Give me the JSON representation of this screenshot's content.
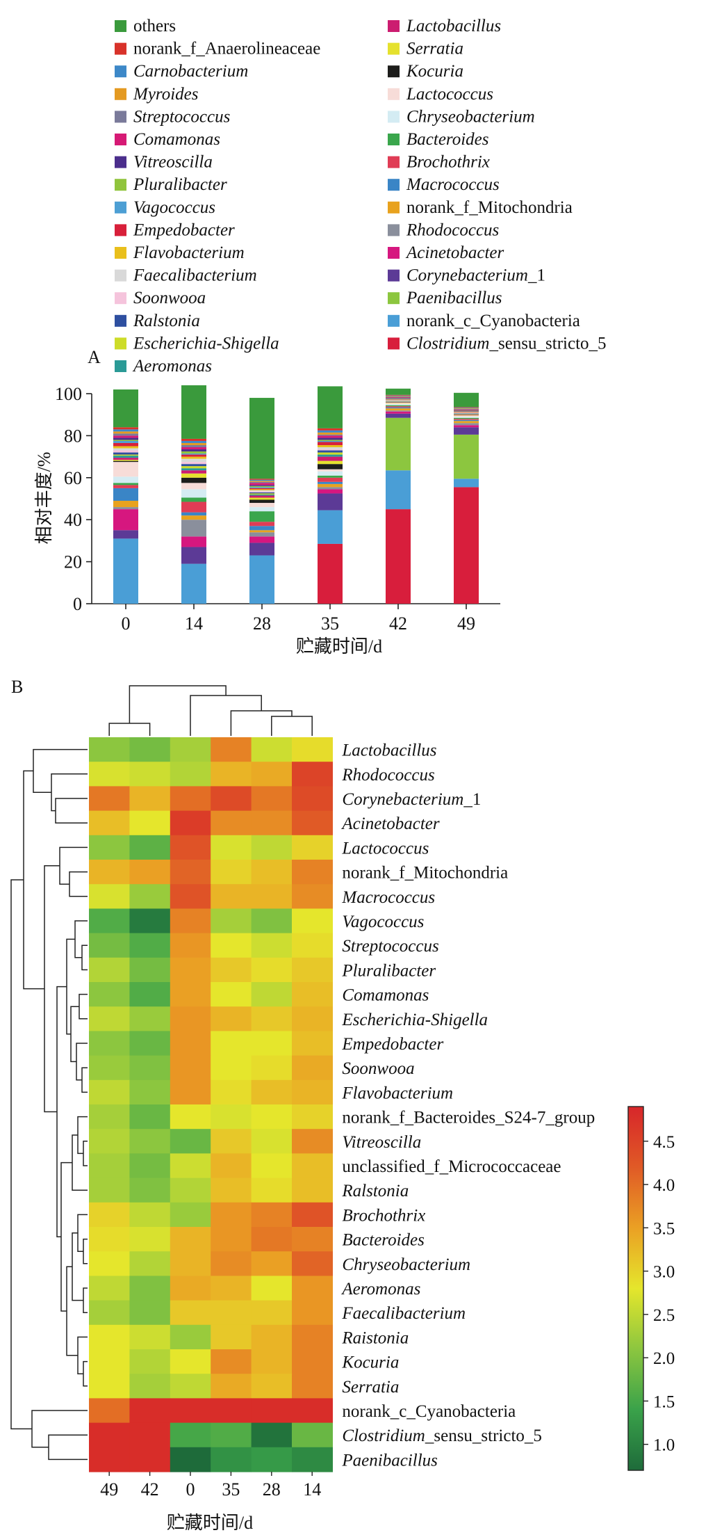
{
  "chart_data": [
    {
      "panel": "A",
      "type": "stacked-bar",
      "xlabel": "贮藏时间/d",
      "ylabel": "相对丰度/%",
      "ylim": [
        0,
        100
      ],
      "yticks": [
        0,
        20,
        40,
        60,
        80,
        100
      ],
      "categories": [
        "0",
        "14",
        "28",
        "35",
        "42",
        "49"
      ],
      "series": [
        {
          "name": "Clostridium_sensu_stricto_5",
          "italic": "Clostridium",
          "rest": "_sensu_stricto_5",
          "color": "#d81e3c",
          "values": [
            0,
            0,
            0,
            28.5,
            45,
            55.5
          ]
        },
        {
          "name": "norank_c_Cyanobacteria",
          "color": "#4a9ed6",
          "values": [
            31,
            19,
            23,
            16,
            18.5,
            4
          ]
        },
        {
          "name": "Paenibacillus",
          "italic": "Paenibacillus",
          "color": "#8cc63f",
          "values": [
            0,
            0,
            0,
            0,
            25,
            21
          ]
        },
        {
          "name": "Corynebacterium_1",
          "italic": "Corynebacterium",
          "rest": "_1",
          "color": "#5c3a96",
          "values": [
            4,
            8,
            6,
            8,
            2,
            3.5
          ]
        },
        {
          "name": "Acinetobacter",
          "italic": "Acinetobacter",
          "color": "#d6177f",
          "values": [
            10,
            5,
            3,
            2,
            1,
            1
          ]
        },
        {
          "name": "Rhodococcus",
          "italic": "Rhodococcus",
          "color": "#8a8f9c",
          "values": [
            1,
            8,
            2,
            1,
            0.5,
            1
          ]
        },
        {
          "name": "norank_f_Mitochondria",
          "color": "#e8a21e",
          "values": [
            3,
            2,
            1,
            1.5,
            1,
            1
          ]
        },
        {
          "name": "Macrococcus",
          "italic": "Macrococcus",
          "color": "#3a85c6",
          "values": [
            6,
            1.5,
            2,
            1,
            0.5,
            0.5
          ]
        },
        {
          "name": "Brochothrix",
          "italic": "Brochothrix",
          "color": "#e03c55",
          "values": [
            1.5,
            5,
            2,
            2,
            0.5,
            0.5
          ]
        },
        {
          "name": "Bacteroides",
          "italic": "Bacteroides",
          "color": "#3aa64c",
          "values": [
            1,
            2,
            5,
            1,
            0.5,
            0.5
          ]
        },
        {
          "name": "Chryseobacterium",
          "italic": "Chryseobacterium",
          "color": "#d4ecf3",
          "values": [
            3,
            4,
            2,
            2,
            0.5,
            0.5
          ]
        },
        {
          "name": "Lactococcus",
          "italic": "Lactococcus",
          "color": "#f7dcd8",
          "values": [
            7,
            3,
            2,
            1,
            0.5,
            0.5
          ]
        },
        {
          "name": "Kocuria",
          "italic": "Kocuria",
          "color": "#1d1d1b",
          "values": [
            0.5,
            2.5,
            1.5,
            2.5,
            0,
            0
          ]
        },
        {
          "name": "Serratia",
          "italic": "Serratia",
          "color": "#e5e12e",
          "values": [
            0.5,
            2,
            1,
            1.5,
            0.2,
            0.2
          ]
        },
        {
          "name": "Lactobacillus",
          "italic": "Lactobacillus",
          "color": "#cc1d70",
          "values": [
            1,
            1.5,
            1,
            2,
            0.2,
            0.3
          ]
        },
        {
          "name": "Aeromonas",
          "italic": "Aeromonas",
          "color": "#2a9a96",
          "values": [
            1,
            1,
            0.5,
            1,
            0.2,
            0.2
          ]
        },
        {
          "name": "Escherichia-Shigella",
          "italic": "Escherichia-Shigella",
          "color": "#cddc29",
          "values": [
            0.5,
            1,
            0.5,
            1,
            0.2,
            0.2
          ]
        },
        {
          "name": "Ralstonia",
          "italic": "Ralstonia",
          "color": "#2e4fa0",
          "values": [
            1,
            1,
            0.5,
            1,
            0.2,
            0.2
          ]
        },
        {
          "name": "Soonwooa",
          "italic": "Soonwooa",
          "color": "#f5c4dc",
          "values": [
            1,
            1,
            0.5,
            0.5,
            0.2,
            0.2
          ]
        },
        {
          "name": "Faecalibacterium",
          "italic": "Faecalibacterium",
          "color": "#d9d9d9",
          "values": [
            1,
            1.5,
            0.5,
            1,
            0.2,
            0.2
          ]
        },
        {
          "name": "Flavobacterium",
          "italic": "Flavobacterium",
          "color": "#e9bf1c",
          "values": [
            1,
            1,
            0.5,
            1,
            0.2,
            0.2
          ]
        },
        {
          "name": "Empedobacter",
          "italic": "Empedobacter",
          "color": "#d8203a",
          "values": [
            1.5,
            1,
            0.5,
            1.5,
            0.2,
            0.3
          ]
        },
        {
          "name": "Vagococcus",
          "italic": "Vagococcus",
          "color": "#4d9fd4",
          "values": [
            1,
            0.5,
            0.5,
            0.5,
            0.2,
            0.2
          ]
        },
        {
          "name": "Pluralibacter",
          "italic": "Pluralibacter",
          "color": "#90c43c",
          "values": [
            0.5,
            1,
            0.5,
            0.5,
            0.2,
            0.2
          ]
        },
        {
          "name": "Vitreoscilla",
          "italic": "Vitreoscilla",
          "color": "#4b2e8c",
          "values": [
            1,
            1,
            0.5,
            1,
            0.2,
            0.2
          ]
        },
        {
          "name": "Comamonas",
          "italic": "Comamonas",
          "color": "#d61a75",
          "values": [
            1,
            1,
            1,
            1,
            0.3,
            0.3
          ]
        },
        {
          "name": "Streptococcus",
          "italic": "Streptococcus",
          "color": "#7a7a9a",
          "values": [
            1,
            1,
            0.5,
            0.5,
            0.3,
            0.3
          ]
        },
        {
          "name": "Myroides",
          "italic": "Myroides",
          "color": "#e49a22",
          "values": [
            1,
            1,
            0.5,
            1,
            0.3,
            0.3
          ]
        },
        {
          "name": "Carnobacterium",
          "italic": "Carnobacterium",
          "color": "#3d88c8",
          "values": [
            1,
            1,
            0.5,
            1,
            0.3,
            0.3
          ]
        },
        {
          "name": "norank_f_Anaerolineaceae",
          "color": "#d8322a",
          "values": [
            1,
            1,
            0.5,
            1,
            0.3,
            0.3
          ]
        },
        {
          "name": "others",
          "color": "#3a9a3c",
          "values": [
            18,
            25.5,
            38.5,
            20,
            3,
            6.8
          ]
        }
      ],
      "legend_columns": [
        [
          "others",
          "norank_f_Anaerolineaceae",
          "Carnobacterium",
          "Myroides",
          "Streptococcus",
          "Comamonas",
          "Vitreoscilla",
          "Pluralibacter",
          "Vagococcus",
          "Empedobacter",
          "Flavobacterium",
          "Faecalibacterium",
          "Soonwooa",
          "Ralstonia",
          "Escherichia-Shigella",
          "Aeromonas"
        ],
        [
          "Lactobacillus",
          "Serratia",
          "Kocuria",
          "Lactococcus",
          "Chryseobacterium",
          "Bacteroides",
          "Brochothrix",
          "Macrococcus",
          "norank_f_Mitochondria",
          "Rhodococcus",
          "Acinetobacter",
          "Corynebacterium_1",
          "Paenibacillus",
          "norank_c_Cyanobacteria",
          "Clostridium_sensu_stricto_5"
        ]
      ]
    },
    {
      "panel": "B",
      "type": "heatmap",
      "xlabel": "贮藏时间/d",
      "columns": [
        "49",
        "42",
        "0",
        "35",
        "28",
        "14"
      ],
      "rows": [
        {
          "label": "Lactobacillus",
          "italic": "Lactobacillus",
          "values": [
            2.1,
            1.9,
            2.3,
            3.8,
            2.6,
            2.9
          ]
        },
        {
          "label": "Rhodococcus",
          "italic": "Rhodococcus",
          "values": [
            2.7,
            2.6,
            2.4,
            3.3,
            3.4,
            4.5
          ]
        },
        {
          "label": "Corynebacterium_1",
          "italic": "Corynebacterium",
          "rest": "_1",
          "values": [
            3.9,
            3.3,
            4.0,
            4.4,
            3.9,
            4.4
          ]
        },
        {
          "label": "Acinetobacter",
          "italic": "Acinetobacter",
          "values": [
            3.2,
            2.8,
            4.6,
            3.7,
            3.7,
            4.2
          ]
        },
        {
          "label": "Lactococcus",
          "italic": "Lactococcus",
          "values": [
            2.1,
            1.7,
            4.3,
            2.7,
            2.5,
            3.0
          ]
        },
        {
          "label": "norank_f_Mitochondria",
          "values": [
            3.3,
            3.5,
            4.1,
            3.0,
            3.2,
            3.8
          ]
        },
        {
          "label": "Macrococcus",
          "italic": "Macrococcus",
          "values": [
            2.7,
            2.2,
            4.3,
            3.3,
            3.3,
            3.7
          ]
        },
        {
          "label": "Vagococcus",
          "italic": "Vagococcus",
          "values": [
            1.6,
            0.9,
            3.8,
            2.3,
            2.0,
            2.8
          ]
        },
        {
          "label": "Streptococcus",
          "italic": "Streptococcus",
          "values": [
            1.9,
            1.6,
            3.6,
            2.8,
            2.6,
            2.9
          ]
        },
        {
          "label": "Pluralibacter",
          "italic": "Pluralibacter",
          "values": [
            2.4,
            1.9,
            3.5,
            3.1,
            2.9,
            3.1
          ]
        },
        {
          "label": "Comamonas",
          "italic": "Comamonas",
          "values": [
            2.1,
            1.6,
            3.5,
            2.8,
            2.5,
            3.2
          ]
        },
        {
          "label": "Escherichia-Shigella",
          "italic": "Escherichia-Shigella",
          "values": [
            2.5,
            2.2,
            3.6,
            3.3,
            3.1,
            3.3
          ]
        },
        {
          "label": "Empedobacter",
          "italic": "Empedobacter",
          "values": [
            2.1,
            1.8,
            3.6,
            2.8,
            2.8,
            3.2
          ]
        },
        {
          "label": "Soonwooa",
          "italic": "Soonwooa",
          "values": [
            2.2,
            2.0,
            3.6,
            2.8,
            2.9,
            3.4
          ]
        },
        {
          "label": "Flavobacterium",
          "italic": "Flavobacterium",
          "values": [
            2.5,
            2.1,
            3.6,
            2.9,
            3.2,
            3.3
          ]
        },
        {
          "label": "norank_f_Bacteroides_S24-7_group",
          "values": [
            2.3,
            1.8,
            2.8,
            2.7,
            2.8,
            3.0
          ]
        },
        {
          "label": "Vitreoscilla",
          "italic": "Vitreoscilla",
          "values": [
            2.4,
            2.1,
            1.8,
            3.1,
            2.7,
            3.7
          ]
        },
        {
          "label": "unclassified_f_Micrococcaceae",
          "values": [
            2.3,
            1.9,
            2.6,
            3.3,
            2.8,
            3.2
          ]
        },
        {
          "label": "Ralstonia",
          "italic": "Ralstonia",
          "values": [
            2.3,
            2.0,
            2.4,
            3.2,
            2.9,
            3.2
          ]
        },
        {
          "label": "Brochothrix",
          "italic": "Brochothrix",
          "values": [
            3.0,
            2.5,
            2.2,
            3.6,
            3.8,
            4.3
          ]
        },
        {
          "label": "Bacteroides",
          "italic": "Bacteroides",
          "values": [
            2.9,
            2.7,
            3.3,
            3.6,
            3.9,
            3.8
          ]
        },
        {
          "label": "Chryseobacterium",
          "italic": "Chryseobacterium",
          "values": [
            2.8,
            2.4,
            3.3,
            3.7,
            3.5,
            4.1
          ]
        },
        {
          "label": "Aeromonas",
          "italic": "Aeromonas",
          "values": [
            2.5,
            2.0,
            3.4,
            3.3,
            2.8,
            3.6
          ]
        },
        {
          "label": "Faecalibacterium",
          "italic": "Faecalibacterium",
          "values": [
            2.3,
            2.0,
            3.1,
            3.1,
            3.1,
            3.6
          ]
        },
        {
          "label": "Raistonia",
          "italic": "Raistonia",
          "values": [
            2.8,
            2.6,
            2.2,
            3.1,
            3.3,
            3.8
          ]
        },
        {
          "label": "Kocuria",
          "italic": "Kocuria",
          "values": [
            2.8,
            2.4,
            2.8,
            3.7,
            3.3,
            3.8
          ]
        },
        {
          "label": "Serratia",
          "italic": "Serratia",
          "values": [
            2.8,
            2.3,
            2.5,
            3.4,
            3.2,
            3.8
          ]
        },
        {
          "label": "norank_c_Cyanobacteria",
          "values": [
            4.0,
            4.8,
            4.8,
            4.8,
            4.8,
            4.8
          ]
        },
        {
          "label": "Clostridium_sensu_stricto_5",
          "italic": "Clostridium",
          "rest": "_sensu_stricto_5",
          "values": [
            4.8,
            4.8,
            1.5,
            1.6,
            0.8,
            1.8
          ]
        },
        {
          "label": "Paenibacillus",
          "italic": "Paenibacillus",
          "values": [
            4.8,
            4.8,
            0.7,
            1.2,
            1.3,
            1.1
          ]
        }
      ],
      "colorbar": {
        "min": 0.7,
        "max": 4.9,
        "ticks": [
          "1.0",
          "1.5",
          "2.0",
          "2.5",
          "3.0",
          "3.5",
          "4.0",
          "4.5"
        ]
      },
      "gradient": [
        "#1e6b3a",
        "#3aa24a",
        "#8cc63f",
        "#e5e62c",
        "#eaa024",
        "#e05a26",
        "#d7262a"
      ]
    }
  ],
  "panel_labels": {
    "a": "A",
    "b": "B"
  },
  "legend_layout_hint": "two-column"
}
